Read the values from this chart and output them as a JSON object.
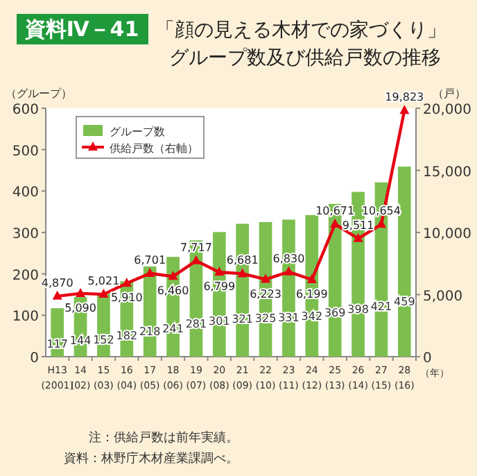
{
  "chart_data": {
    "type": "bar",
    "title": "「顔の見える木材での家づくり」",
    "subtitle": "グループ数及び供給戸数の推移",
    "annotations": [
      "資料Ⅳ－41",
      "（年）",
      "注：供給戸数は前年実績。",
      "資料：林野庁木材産業課調べ。"
    ],
    "ylabel": "（グループ）",
    "y2label": "（戸）",
    "categories": [
      "H13\n(2001)",
      "14\n(02)",
      "15\n(03)",
      "16\n(04)",
      "17\n(05)",
      "18\n(06)",
      "19\n(07)",
      "20\n(08)",
      "21\n(09)",
      "22\n(10)",
      "23\n(11)",
      "24\n(12)",
      "25\n(13)",
      "26\n(14)",
      "27\n(15)",
      "28\n(16)"
    ],
    "series": [
      {
        "name": "グループ数",
        "color": "#7dbf4f",
        "values": [
          117,
          144,
          152,
          182,
          218,
          241,
          281,
          301,
          321,
          325,
          331,
          342,
          369,
          398,
          421,
          459
        ]
      },
      {
        "name": "供給戸数（右軸）",
        "type": "line",
        "axis": "y2",
        "color": "#e60012",
        "marker": "triangle",
        "values": [
          4870,
          5090,
          5021,
          5910,
          6701,
          6460,
          7717,
          6799,
          6681,
          6223,
          6830,
          6199,
          10671,
          9511,
          10654,
          19823
        ],
        "value_labels": [
          "4,870",
          "5,090",
          "5,021",
          "5,910",
          "6,701",
          "6,460",
          "7,717",
          "6,799",
          "6,681",
          "6,223",
          "6,830",
          "6,199",
          "10,671",
          "9,511",
          "10,654",
          "19,823"
        ]
      }
    ],
    "ylim": [
      0,
      600
    ],
    "yticks": [
      0,
      100,
      200,
      300,
      400,
      500,
      600
    ],
    "y2lim": [
      0,
      20000
    ],
    "y2ticks": [
      {
        "value": 0,
        "label": "0"
      },
      {
        "value": 5000,
        "label": "5,000"
      },
      {
        "value": 10000,
        "label": "10,000"
      },
      {
        "value": 15000,
        "label": "15,000"
      },
      {
        "value": 20000,
        "label": "20,000"
      }
    ],
    "data_labels": true,
    "legend": "top left",
    "grid": false
  }
}
